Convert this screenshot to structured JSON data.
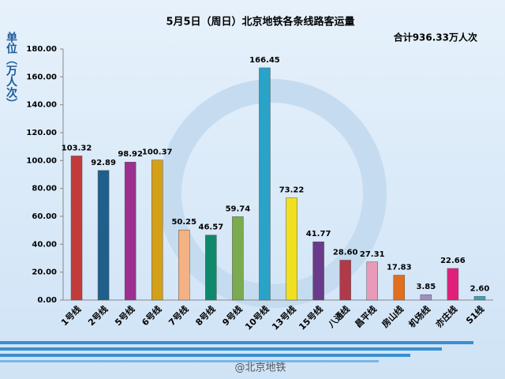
{
  "chart_data": {
    "type": "bar",
    "title": "5月5日（周日）北京地铁各条线路客运量",
    "annotation": "合计936.33万人次",
    "y_label": "单位（万人次）",
    "categories": [
      "1号线",
      "2号线",
      "5号线",
      "6号线",
      "7号线",
      "8号线",
      "9号线",
      "10号线",
      "13号线",
      "15号线",
      "八通线",
      "昌平线",
      "房山线",
      "机场线",
      "亦庄线",
      "S1线"
    ],
    "values": [
      103.32,
      92.89,
      98.92,
      100.37,
      50.25,
      46.57,
      59.74,
      166.45,
      73.22,
      41.77,
      28.6,
      27.31,
      17.83,
      3.85,
      22.66,
      2.6
    ],
    "value_labels": [
      "103.32",
      "92.89",
      "98.92",
      "100.37",
      "50.25",
      "46.57",
      "59.74",
      "166.45",
      "73.22",
      "41.77",
      "28.60",
      "27.31",
      "17.83",
      "3.85",
      "22.66",
      "2.60"
    ],
    "colors": [
      "#c23b3b",
      "#1f5f8b",
      "#9c2f8f",
      "#d4a017",
      "#f4b183",
      "#0e8a6a",
      "#7aab4e",
      "#2aa3c8",
      "#f0e020",
      "#6a3b8a",
      "#b03a4a",
      "#e89ab8",
      "#e07020",
      "#a090c0",
      "#e0207a",
      "#40a0b0"
    ],
    "ylim": [
      0,
      180
    ],
    "yticks": [
      {
        "value": 0,
        "label": "0.00"
      },
      {
        "value": 20,
        "label": "20.00"
      },
      {
        "value": 40,
        "label": "40.00"
      },
      {
        "value": 60,
        "label": "60.00"
      },
      {
        "value": 80,
        "label": "80.00"
      },
      {
        "value": 100,
        "label": "100.00"
      },
      {
        "value": 120,
        "label": "120.00"
      },
      {
        "value": 140,
        "label": "140.00"
      },
      {
        "value": 160,
        "label": "160.00"
      },
      {
        "value": 180,
        "label": "180.00"
      }
    ]
  },
  "watermark": "@北京地铁"
}
